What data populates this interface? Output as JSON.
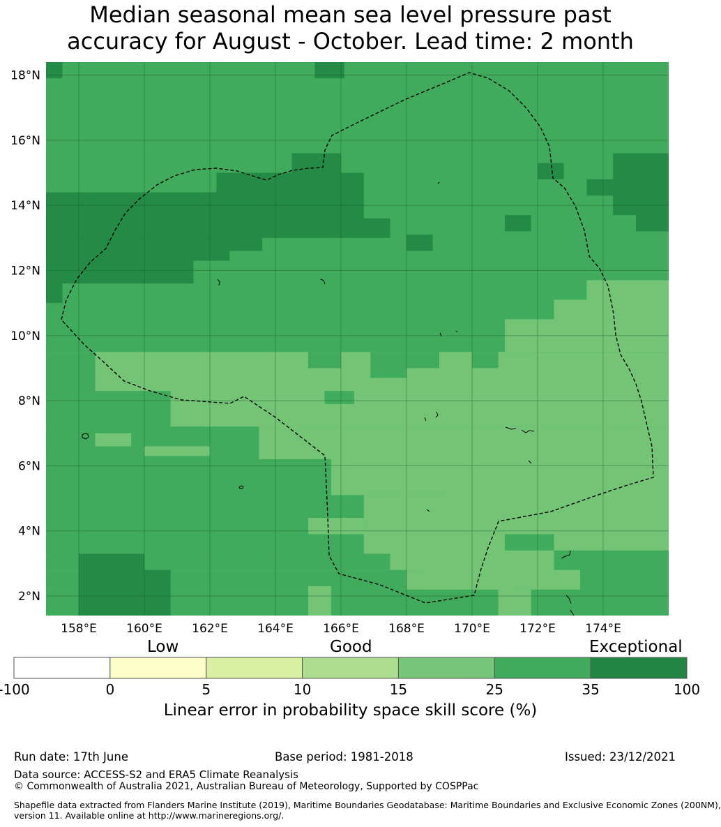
{
  "title": {
    "line1": "Median seasonal mean sea level pressure past",
    "line2": "accuracy for August - October. Lead time: 2 month"
  },
  "map": {
    "lon_range": [
      157,
      176
    ],
    "lat_range": [
      1.4,
      18.4
    ],
    "x_ticks": [
      "158°E",
      "160°E",
      "162°E",
      "164°E",
      "166°E",
      "168°E",
      "170°E",
      "172°E",
      "174°E"
    ],
    "y_ticks": [
      "18°N",
      "16°N",
      "14°N",
      "12°N",
      "10°N",
      "8°N",
      "6°N",
      "4°N",
      "2°N"
    ],
    "colors": {
      "score_15_25": "#74c476",
      "score_25_35": "#41ab5d",
      "score_35_100": "#238b45"
    },
    "boundary_line": "black-dashed-eez-boundary"
  },
  "colorbar": {
    "category_labels": {
      "low": "Low",
      "good": "Good",
      "exceptional": "Exceptional"
    },
    "tick_labels": [
      "-100",
      "0",
      "5",
      "10",
      "15",
      "25",
      "35",
      "100"
    ],
    "colors": [
      "#ffffff",
      "#ffffcc",
      "#d9f0a3",
      "#addd8e",
      "#78c679",
      "#41ab5d",
      "#238443"
    ],
    "axis_title": "Linear error in probability space skill score (%)"
  },
  "footer": {
    "run_date": "Run date: 17th June",
    "base_period": "Base period: 1981-2018",
    "issued": "Issued: 23/12/2021",
    "data_source": "Data source: ACCESS-S2 and ERA5 Climate Reanalysis",
    "copyright": "© Commonwealth of Australia 2021, Australian Bureau of Meteorology, Supported by COSPPac",
    "shapefile_line1": "Shapefile data extracted from Flanders Marine Institute (2019), Maritime Boundaries Geodatabase: Maritime Boundaries and Exclusive Economic Zones (200NM),",
    "shapefile_line2": "version 11. Available online at http://www.marineregions.org/."
  }
}
